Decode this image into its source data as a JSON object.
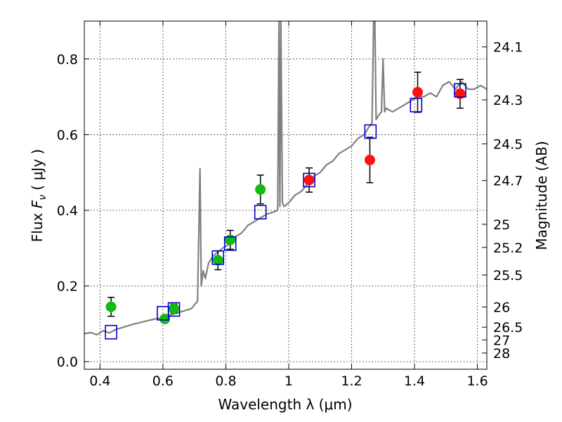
{
  "chart_data": {
    "type": "scatter",
    "title": "",
    "xlabel": "Wavelength  λ (μm)",
    "ylabel": "Flux  F_ν  ( μJy )",
    "ylabel_parts": {
      "prefix": "Flux  ",
      "symbol": "F",
      "subscript": "ν",
      "suffix": "  ( μJy )"
    },
    "y2label": "Magnitude (AB)",
    "xlim": [
      0.35,
      1.63
    ],
    "ylim": [
      -0.02,
      0.9
    ],
    "grid": true,
    "x_ticks": [
      0.4,
      0.6,
      0.8,
      1.0,
      1.2,
      1.4,
      1.6
    ],
    "x_tick_labels": [
      "0.4",
      "0.6",
      "0.8",
      "1",
      "1.2",
      "1.4",
      "1.6"
    ],
    "y_ticks": [
      0.0,
      0.2,
      0.4,
      0.6,
      0.8
    ],
    "y_tick_labels": [
      "0.0",
      "0.2",
      "0.4",
      "0.6",
      "0.8"
    ],
    "mag_ticks": [
      24.1,
      24.3,
      24.5,
      24.7,
      25,
      25.2,
      25.5,
      26,
      26.5,
      27,
      28
    ],
    "mag_tick_labels": [
      "24.1",
      "24.3",
      "24.5",
      "24.7",
      "25",
      "25.2",
      "25.5",
      "26",
      "26.5",
      "27",
      "28"
    ],
    "series": [
      {
        "name": "model SED",
        "kind": "line",
        "color": "#808080",
        "x": [
          0.35,
          0.37,
          0.39,
          0.41,
          0.43,
          0.45,
          0.47,
          0.49,
          0.51,
          0.53,
          0.55,
          0.57,
          0.59,
          0.61,
          0.63,
          0.65,
          0.67,
          0.69,
          0.71,
          0.718,
          0.722,
          0.728,
          0.735,
          0.745,
          0.76,
          0.775,
          0.79,
          0.81,
          0.83,
          0.85,
          0.87,
          0.89,
          0.91,
          0.93,
          0.95,
          0.965,
          0.969,
          0.972,
          0.975,
          0.98,
          0.985,
          1.0,
          1.02,
          1.04,
          1.06,
          1.08,
          1.1,
          1.12,
          1.14,
          1.16,
          1.18,
          1.2,
          1.22,
          1.24,
          1.255,
          1.265,
          1.27,
          1.274,
          1.278,
          1.285,
          1.295,
          1.3,
          1.305,
          1.31,
          1.33,
          1.35,
          1.37,
          1.39,
          1.41,
          1.43,
          1.45,
          1.47,
          1.49,
          1.51,
          1.53,
          1.55,
          1.57,
          1.59,
          1.61,
          1.63
        ],
        "y": [
          0.074,
          0.077,
          0.071,
          0.082,
          0.076,
          0.085,
          0.09,
          0.095,
          0.1,
          0.104,
          0.108,
          0.112,
          0.115,
          0.12,
          0.125,
          0.13,
          0.135,
          0.14,
          0.16,
          0.51,
          0.2,
          0.24,
          0.22,
          0.26,
          0.28,
          0.29,
          0.3,
          0.31,
          0.33,
          0.34,
          0.36,
          0.37,
          0.38,
          0.39,
          0.395,
          0.4,
          0.9,
          0.41,
          0.9,
          0.42,
          0.41,
          0.42,
          0.44,
          0.45,
          0.47,
          0.49,
          0.5,
          0.52,
          0.53,
          0.55,
          0.56,
          0.57,
          0.59,
          0.6,
          0.62,
          0.63,
          0.9,
          0.9,
          0.64,
          0.65,
          0.66,
          0.8,
          0.66,
          0.67,
          0.66,
          0.67,
          0.68,
          0.69,
          0.7,
          0.7,
          0.71,
          0.7,
          0.73,
          0.74,
          0.72,
          0.74,
          0.72,
          0.72,
          0.73,
          0.72
        ]
      },
      {
        "name": "green photometry",
        "kind": "points",
        "marker": "circle",
        "color": "#11bb11",
        "x": [
          0.435,
          0.606,
          0.635,
          0.775,
          0.814,
          0.91
        ],
        "y": [
          0.145,
          0.113,
          0.14,
          0.268,
          0.322,
          0.455
        ],
        "yerr": [
          0.025,
          0.008,
          0.012,
          0.025,
          0.025,
          0.038
        ]
      },
      {
        "name": "red photometry",
        "kind": "points",
        "marker": "circle",
        "color": "#ff1111",
        "x": [
          1.065,
          1.258,
          1.41,
          1.545
        ],
        "y": [
          0.48,
          0.533,
          0.712,
          0.708
        ],
        "yerr": [
          0.032,
          0.06,
          0.053,
          0.038
        ]
      },
      {
        "name": "model fluxes",
        "kind": "points",
        "marker": "open-square",
        "color": "#0000cc",
        "x": [
          0.435,
          0.6,
          0.635,
          0.775,
          0.814,
          0.91,
          1.065,
          1.26,
          1.405,
          1.545
        ],
        "y": [
          0.078,
          0.128,
          0.138,
          0.275,
          0.312,
          0.395,
          0.48,
          0.608,
          0.678,
          0.717
        ]
      }
    ]
  }
}
